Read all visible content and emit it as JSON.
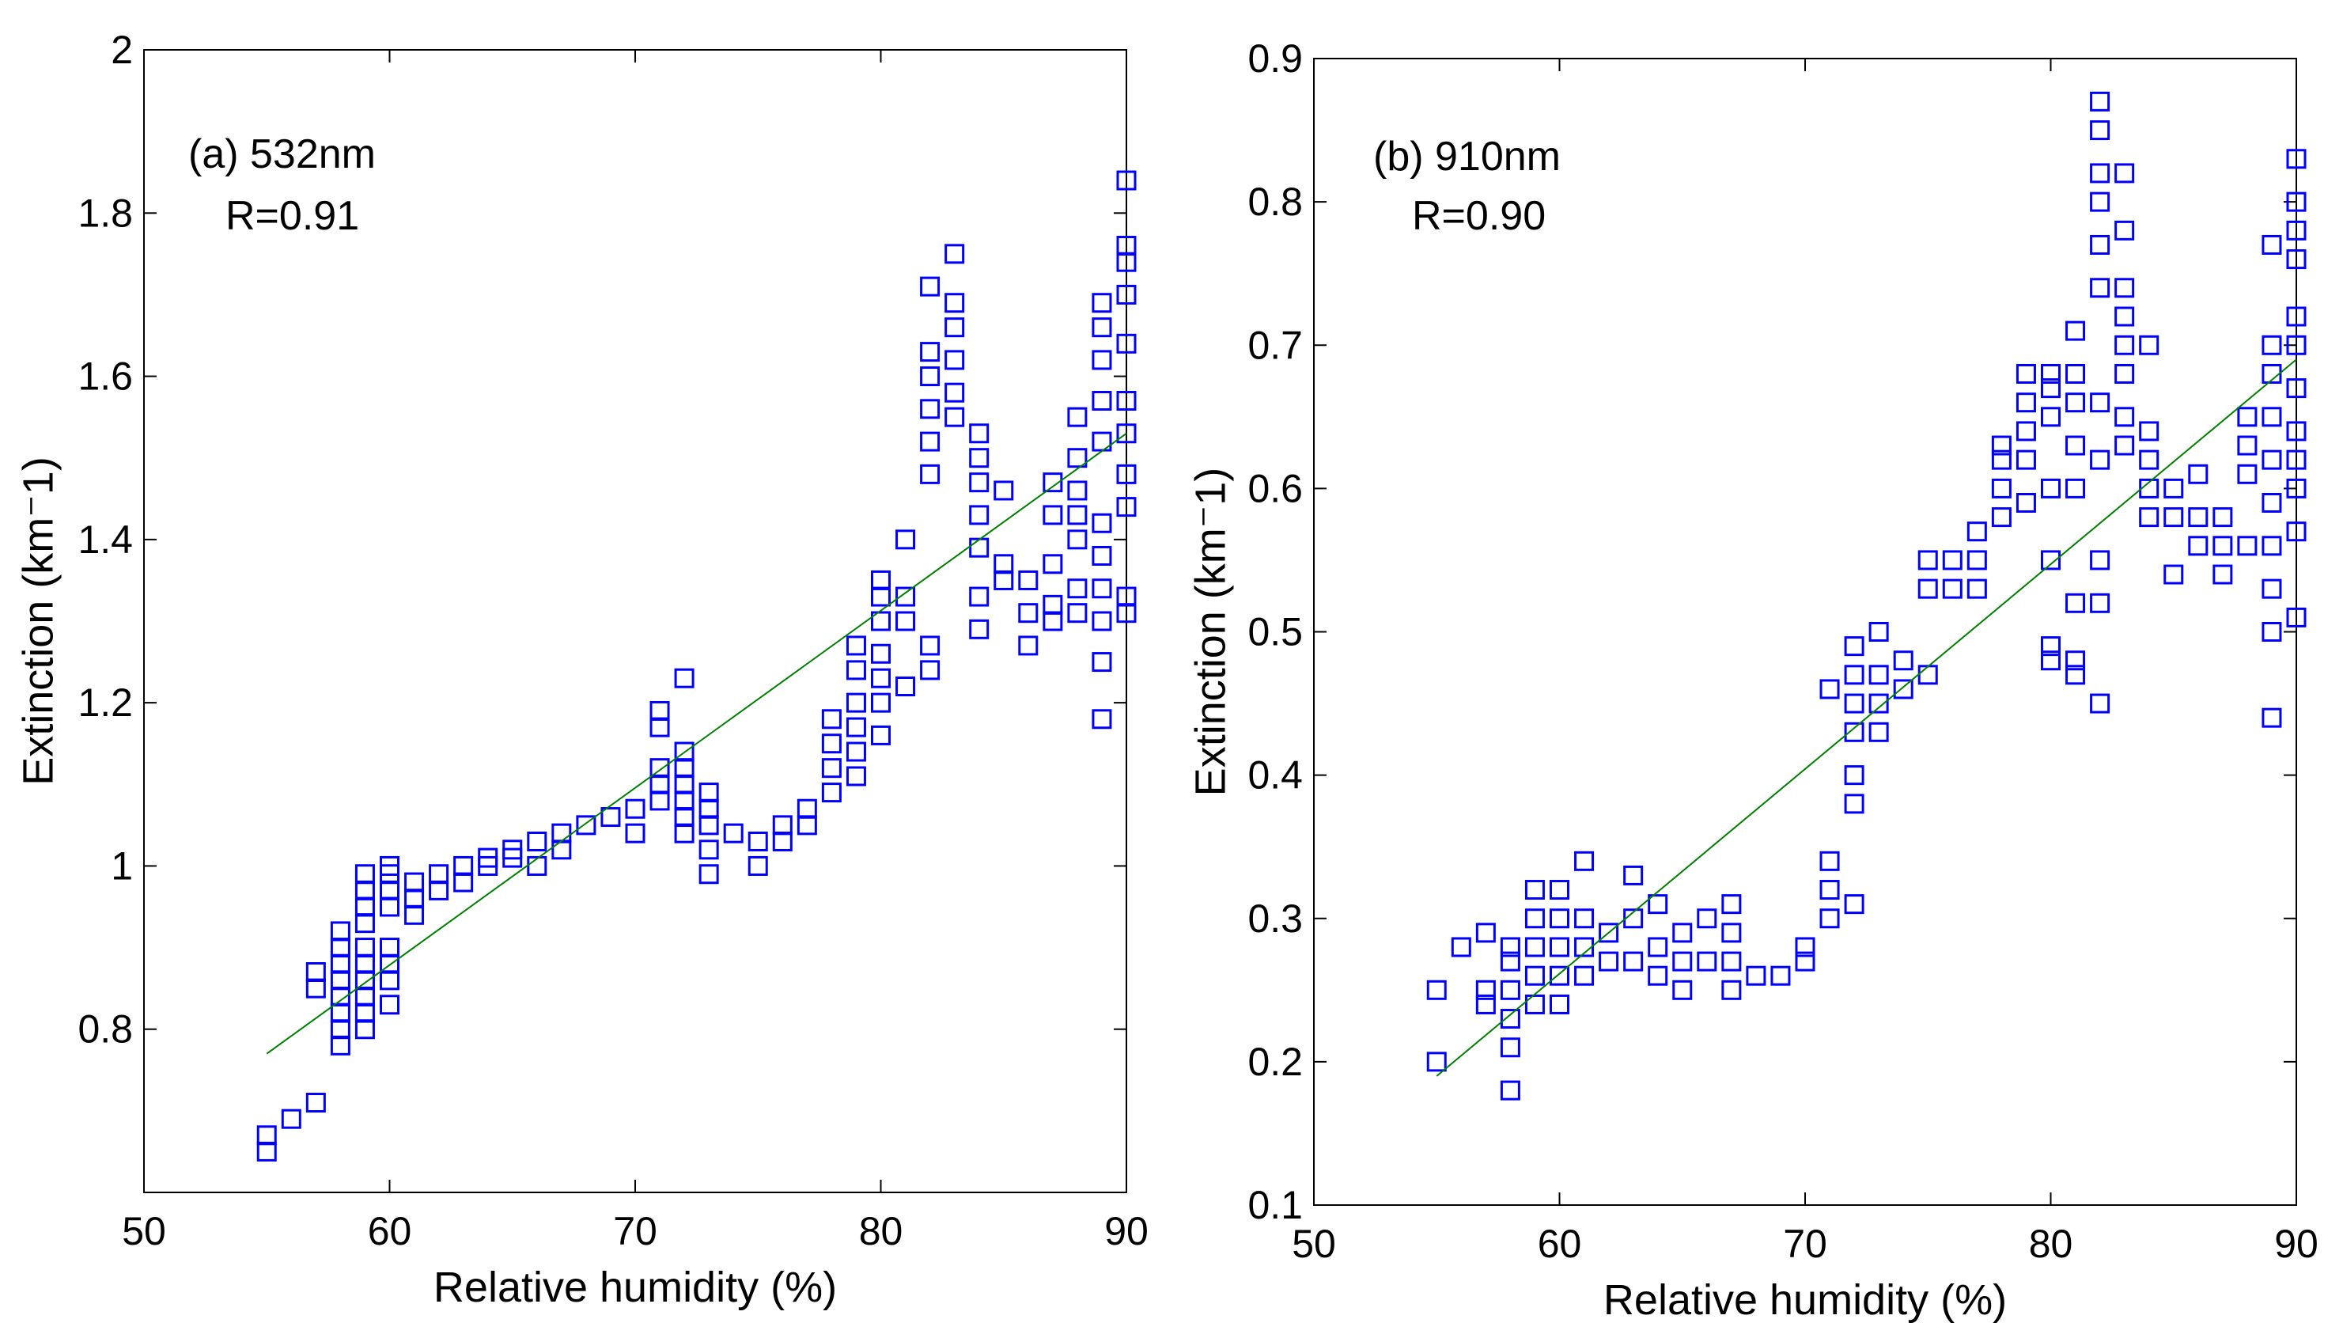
{
  "colors": {
    "marker": "#0000ff",
    "fit_line": "#008000",
    "axes": "#000000",
    "background": "#ffffff"
  },
  "chart_data": [
    {
      "type": "scatter",
      "annotation_line1": "(a) 532nm",
      "annotation_line2": "R=0.91",
      "xlabel": "Relative humidity (%)",
      "ylabel": "Extinction (km⁻1)",
      "xlim": [
        50,
        90
      ],
      "ylim": [
        0.6,
        2.0
      ],
      "xticks": [
        50,
        60,
        70,
        80,
        90
      ],
      "xtick_labels": [
        "50",
        "60",
        "70",
        "80",
        "90"
      ],
      "yticks": [
        0.8,
        1.0,
        1.2,
        1.4,
        1.6,
        1.8,
        2.0
      ],
      "ytick_labels": [
        "0.8",
        "1",
        "1.2",
        "1.4",
        "1.6",
        "1.8",
        "2"
      ],
      "fit": {
        "x": [
          55,
          90
        ],
        "y": [
          0.77,
          1.53
        ]
      },
      "points": [
        [
          55,
          0.65
        ],
        [
          55,
          0.67
        ],
        [
          56,
          0.69
        ],
        [
          57,
          0.71
        ],
        [
          57,
          0.85
        ],
        [
          57,
          0.87
        ],
        [
          58,
          0.78
        ],
        [
          58,
          0.8
        ],
        [
          58,
          0.82
        ],
        [
          58,
          0.84
        ],
        [
          58,
          0.86
        ],
        [
          58,
          0.88
        ],
        [
          58,
          0.9
        ],
        [
          58,
          0.92
        ],
        [
          59,
          0.8
        ],
        [
          59,
          0.82
        ],
        [
          59,
          0.84
        ],
        [
          59,
          0.86
        ],
        [
          59,
          0.88
        ],
        [
          59,
          0.9
        ],
        [
          59,
          0.93
        ],
        [
          59,
          0.95
        ],
        [
          59,
          0.97
        ],
        [
          59,
          0.99
        ],
        [
          60,
          0.83
        ],
        [
          60,
          0.86
        ],
        [
          60,
          0.88
        ],
        [
          60,
          0.9
        ],
        [
          60,
          0.95
        ],
        [
          60,
          0.97
        ],
        [
          60,
          0.99
        ],
        [
          60,
          1.0
        ],
        [
          61,
          0.94
        ],
        [
          61,
          0.96
        ],
        [
          61,
          0.98
        ],
        [
          62,
          0.97
        ],
        [
          62,
          0.99
        ],
        [
          63,
          0.98
        ],
        [
          63,
          1.0
        ],
        [
          64,
          1.0
        ],
        [
          64,
          1.01
        ],
        [
          65,
          1.01
        ],
        [
          65,
          1.02
        ],
        [
          66,
          1.0
        ],
        [
          66,
          1.03
        ],
        [
          67,
          1.02
        ],
        [
          67,
          1.04
        ],
        [
          68,
          1.05
        ],
        [
          69,
          1.06
        ],
        [
          70,
          1.04
        ],
        [
          70,
          1.07
        ],
        [
          71,
          1.08
        ],
        [
          71,
          1.1
        ],
        [
          71,
          1.12
        ],
        [
          71,
          1.17
        ],
        [
          71,
          1.19
        ],
        [
          72,
          1.04
        ],
        [
          72,
          1.06
        ],
        [
          72,
          1.08
        ],
        [
          72,
          1.1
        ],
        [
          72,
          1.12
        ],
        [
          72,
          1.14
        ],
        [
          72,
          1.23
        ],
        [
          73,
          0.99
        ],
        [
          73,
          1.02
        ],
        [
          73,
          1.05
        ],
        [
          73,
          1.07
        ],
        [
          73,
          1.09
        ],
        [
          74,
          1.04
        ],
        [
          75,
          1.0
        ],
        [
          75,
          1.03
        ],
        [
          76,
          1.03
        ],
        [
          76,
          1.05
        ],
        [
          77,
          1.05
        ],
        [
          77,
          1.07
        ],
        [
          78,
          1.09
        ],
        [
          78,
          1.12
        ],
        [
          78,
          1.15
        ],
        [
          78,
          1.18
        ],
        [
          79,
          1.11
        ],
        [
          79,
          1.14
        ],
        [
          79,
          1.17
        ],
        [
          79,
          1.2
        ],
        [
          79,
          1.24
        ],
        [
          79,
          1.27
        ],
        [
          80,
          1.16
        ],
        [
          80,
          1.2
        ],
        [
          80,
          1.23
        ],
        [
          80,
          1.26
        ],
        [
          80,
          1.3
        ],
        [
          80,
          1.33
        ],
        [
          80,
          1.35
        ],
        [
          81,
          1.22
        ],
        [
          81,
          1.3
        ],
        [
          81,
          1.33
        ],
        [
          81,
          1.4
        ],
        [
          82,
          1.24
        ],
        [
          82,
          1.27
        ],
        [
          82,
          1.48
        ],
        [
          82,
          1.52
        ],
        [
          82,
          1.56
        ],
        [
          82,
          1.6
        ],
        [
          82,
          1.63
        ],
        [
          82,
          1.71
        ],
        [
          83,
          1.55
        ],
        [
          83,
          1.58
        ],
        [
          83,
          1.62
        ],
        [
          83,
          1.66
        ],
        [
          83,
          1.69
        ],
        [
          83,
          1.75
        ],
        [
          84,
          1.29
        ],
        [
          84,
          1.33
        ],
        [
          84,
          1.39
        ],
        [
          84,
          1.43
        ],
        [
          84,
          1.47
        ],
        [
          84,
          1.5
        ],
        [
          84,
          1.53
        ],
        [
          85,
          1.35
        ],
        [
          85,
          1.37
        ],
        [
          85,
          1.46
        ],
        [
          86,
          1.27
        ],
        [
          86,
          1.31
        ],
        [
          86,
          1.35
        ],
        [
          87,
          1.3
        ],
        [
          87,
          1.32
        ],
        [
          87,
          1.37
        ],
        [
          87,
          1.43
        ],
        [
          87,
          1.47
        ],
        [
          88,
          1.31
        ],
        [
          88,
          1.34
        ],
        [
          88,
          1.4
        ],
        [
          88,
          1.43
        ],
        [
          88,
          1.46
        ],
        [
          88,
          1.5
        ],
        [
          88,
          1.55
        ],
        [
          89,
          1.18
        ],
        [
          89,
          1.25
        ],
        [
          89,
          1.3
        ],
        [
          89,
          1.34
        ],
        [
          89,
          1.38
        ],
        [
          89,
          1.42
        ],
        [
          89,
          1.52
        ],
        [
          89,
          1.57
        ],
        [
          89,
          1.62
        ],
        [
          89,
          1.66
        ],
        [
          89,
          1.69
        ],
        [
          90,
          1.31
        ],
        [
          90,
          1.33
        ],
        [
          90,
          1.44
        ],
        [
          90,
          1.48
        ],
        [
          90,
          1.53
        ],
        [
          90,
          1.57
        ],
        [
          90,
          1.64
        ],
        [
          90,
          1.7
        ],
        [
          90,
          1.74
        ],
        [
          90,
          1.76
        ],
        [
          90,
          1.84
        ]
      ]
    },
    {
      "type": "scatter",
      "annotation_line1": "(b) 910nm",
      "annotation_line2": "R=0.90",
      "xlabel": "Relative humidity (%)",
      "ylabel": "Extinction (km⁻1)",
      "xlim": [
        50,
        90
      ],
      "ylim": [
        0.1,
        0.9
      ],
      "xticks": [
        50,
        60,
        70,
        80,
        90
      ],
      "xtick_labels": [
        "50",
        "60",
        "70",
        "80",
        "90"
      ],
      "yticks": [
        0.1,
        0.2,
        0.3,
        0.4,
        0.5,
        0.6,
        0.7,
        0.8,
        0.9
      ],
      "ytick_labels": [
        "0.1",
        "0.2",
        "0.3",
        "0.4",
        "0.5",
        "0.6",
        "0.7",
        "0.8",
        "0.9"
      ],
      "fit": {
        "x": [
          55,
          90
        ],
        "y": [
          0.19,
          0.69
        ]
      },
      "points": [
        [
          55,
          0.2
        ],
        [
          55,
          0.25
        ],
        [
          56,
          0.28
        ],
        [
          57,
          0.24
        ],
        [
          57,
          0.25
        ],
        [
          57,
          0.29
        ],
        [
          58,
          0.18
        ],
        [
          58,
          0.21
        ],
        [
          58,
          0.23
        ],
        [
          58,
          0.25
        ],
        [
          58,
          0.27
        ],
        [
          58,
          0.28
        ],
        [
          59,
          0.24
        ],
        [
          59,
          0.26
        ],
        [
          59,
          0.28
        ],
        [
          59,
          0.3
        ],
        [
          59,
          0.32
        ],
        [
          60,
          0.24
        ],
        [
          60,
          0.26
        ],
        [
          60,
          0.28
        ],
        [
          60,
          0.3
        ],
        [
          60,
          0.32
        ],
        [
          61,
          0.26
        ],
        [
          61,
          0.28
        ],
        [
          61,
          0.3
        ],
        [
          61,
          0.34
        ],
        [
          62,
          0.27
        ],
        [
          62,
          0.29
        ],
        [
          63,
          0.27
        ],
        [
          63,
          0.3
        ],
        [
          63,
          0.33
        ],
        [
          64,
          0.26
        ],
        [
          64,
          0.28
        ],
        [
          64,
          0.31
        ],
        [
          65,
          0.25
        ],
        [
          65,
          0.27
        ],
        [
          65,
          0.29
        ],
        [
          66,
          0.27
        ],
        [
          66,
          0.3
        ],
        [
          67,
          0.25
        ],
        [
          67,
          0.27
        ],
        [
          67,
          0.29
        ],
        [
          67,
          0.31
        ],
        [
          68,
          0.26
        ],
        [
          69,
          0.26
        ],
        [
          70,
          0.27
        ],
        [
          70,
          0.28
        ],
        [
          71,
          0.3
        ],
        [
          71,
          0.32
        ],
        [
          71,
          0.34
        ],
        [
          71,
          0.46
        ],
        [
          72,
          0.31
        ],
        [
          72,
          0.38
        ],
        [
          72,
          0.4
        ],
        [
          72,
          0.43
        ],
        [
          72,
          0.45
        ],
        [
          72,
          0.47
        ],
        [
          72,
          0.49
        ],
        [
          73,
          0.43
        ],
        [
          73,
          0.45
        ],
        [
          73,
          0.47
        ],
        [
          73,
          0.5
        ],
        [
          74,
          0.46
        ],
        [
          74,
          0.48
        ],
        [
          75,
          0.47
        ],
        [
          75,
          0.53
        ],
        [
          75,
          0.55
        ],
        [
          76,
          0.53
        ],
        [
          76,
          0.55
        ],
        [
          77,
          0.53
        ],
        [
          77,
          0.55
        ],
        [
          77,
          0.57
        ],
        [
          78,
          0.58
        ],
        [
          78,
          0.6
        ],
        [
          78,
          0.62
        ],
        [
          78,
          0.63
        ],
        [
          79,
          0.59
        ],
        [
          79,
          0.62
        ],
        [
          79,
          0.64
        ],
        [
          79,
          0.66
        ],
        [
          79,
          0.68
        ],
        [
          80,
          0.48
        ],
        [
          80,
          0.49
        ],
        [
          80,
          0.55
        ],
        [
          80,
          0.6
        ],
        [
          80,
          0.65
        ],
        [
          80,
          0.67
        ],
        [
          80,
          0.68
        ],
        [
          81,
          0.47
        ],
        [
          81,
          0.48
        ],
        [
          81,
          0.52
        ],
        [
          81,
          0.6
        ],
        [
          81,
          0.63
        ],
        [
          81,
          0.66
        ],
        [
          81,
          0.68
        ],
        [
          81,
          0.71
        ],
        [
          82,
          0.45
        ],
        [
          82,
          0.52
        ],
        [
          82,
          0.55
        ],
        [
          82,
          0.62
        ],
        [
          82,
          0.66
        ],
        [
          82,
          0.74
        ],
        [
          82,
          0.77
        ],
        [
          82,
          0.8
        ],
        [
          82,
          0.82
        ],
        [
          82,
          0.85
        ],
        [
          82,
          0.87
        ],
        [
          83,
          0.63
        ],
        [
          83,
          0.65
        ],
        [
          83,
          0.68
        ],
        [
          83,
          0.7
        ],
        [
          83,
          0.72
        ],
        [
          83,
          0.74
        ],
        [
          83,
          0.78
        ],
        [
          83,
          0.82
        ],
        [
          84,
          0.58
        ],
        [
          84,
          0.6
        ],
        [
          84,
          0.62
        ],
        [
          84,
          0.64
        ],
        [
          84,
          0.7
        ],
        [
          85,
          0.54
        ],
        [
          85,
          0.58
        ],
        [
          85,
          0.6
        ],
        [
          86,
          0.56
        ],
        [
          86,
          0.58
        ],
        [
          86,
          0.61
        ],
        [
          87,
          0.54
        ],
        [
          87,
          0.56
        ],
        [
          87,
          0.58
        ],
        [
          88,
          0.56
        ],
        [
          88,
          0.61
        ],
        [
          88,
          0.63
        ],
        [
          88,
          0.65
        ],
        [
          89,
          0.44
        ],
        [
          89,
          0.5
        ],
        [
          89,
          0.53
        ],
        [
          89,
          0.56
        ],
        [
          89,
          0.59
        ],
        [
          89,
          0.62
        ],
        [
          89,
          0.65
        ],
        [
          89,
          0.68
        ],
        [
          89,
          0.7
        ],
        [
          89,
          0.77
        ],
        [
          90,
          0.51
        ],
        [
          90,
          0.57
        ],
        [
          90,
          0.6
        ],
        [
          90,
          0.62
        ],
        [
          90,
          0.64
        ],
        [
          90,
          0.67
        ],
        [
          90,
          0.7
        ],
        [
          90,
          0.72
        ],
        [
          90,
          0.76
        ],
        [
          90,
          0.78
        ],
        [
          90,
          0.8
        ],
        [
          90,
          0.83
        ]
      ]
    }
  ]
}
